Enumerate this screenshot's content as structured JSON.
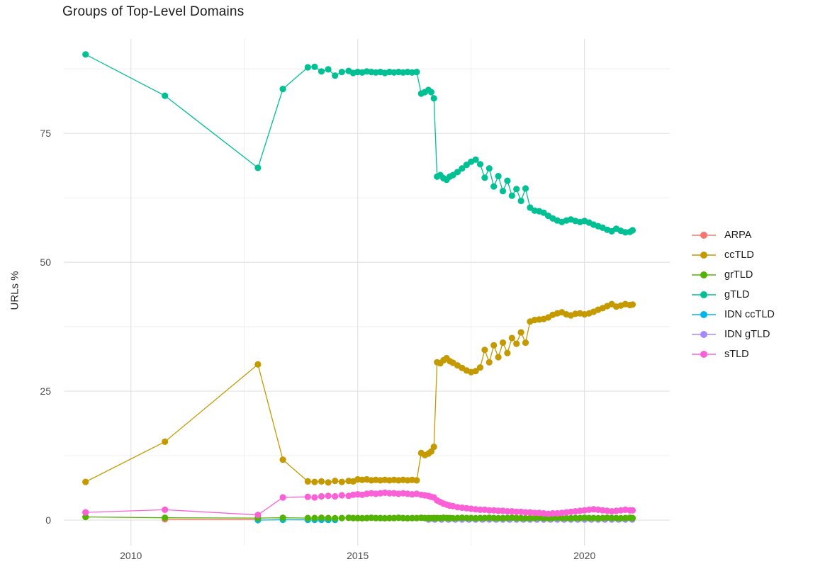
{
  "chart_data": {
    "type": "line",
    "title": "Groups of Top-Level Domains",
    "xlabel": "",
    "ylabel": "URLs %",
    "grid": true,
    "legend_position": "right",
    "x_ticks": [
      2010,
      2015,
      2020
    ],
    "x_tick_labels": [
      "2010",
      "2015",
      "2020"
    ],
    "y_ticks": [
      0,
      25,
      50,
      75
    ],
    "y_tick_labels": [
      "0",
      "25",
      "50",
      "75"
    ],
    "x_minor": [
      2012.5,
      2017.5
    ],
    "y_minor": [
      12.5,
      37.5,
      62.5,
      87.5
    ],
    "xlim": [
      2008.52,
      2021.88
    ],
    "ylim": [
      -4.95,
      93.3
    ],
    "legend": [
      {
        "label": "ARPA",
        "color": "#F8766D"
      },
      {
        "label": "ccTLD",
        "color": "#C49A00"
      },
      {
        "label": "grTLD",
        "color": "#53B400"
      },
      {
        "label": "gTLD",
        "color": "#00C094"
      },
      {
        "label": "IDN ccTLD",
        "color": "#00B6EB"
      },
      {
        "label": "IDN gTLD",
        "color": "#A58AFF"
      },
      {
        "label": "sTLD",
        "color": "#FB61D7"
      }
    ],
    "dense_x": [
      2013.35,
      2013.9,
      2014.05,
      2014.2,
      2014.35,
      2014.5,
      2014.65,
      2014.8,
      2014.9,
      2015.0,
      2015.1,
      2015.2,
      2015.3,
      2015.4,
      2015.5,
      2015.6,
      2015.7,
      2015.8,
      2015.9,
      2016.0,
      2016.1,
      2016.2,
      2016.3,
      2016.4,
      2016.48,
      2016.56,
      2016.62,
      2016.68,
      2016.75,
      2016.82,
      2016.89,
      2016.96,
      2017.03,
      2017.1,
      2017.2,
      2017.3,
      2017.4,
      2017.5,
      2017.6,
      2017.7,
      2017.8,
      2017.9,
      2018.0,
      2018.1,
      2018.2,
      2018.3,
      2018.4,
      2018.5,
      2018.6,
      2018.7,
      2018.8,
      2018.9,
      2019.0,
      2019.1,
      2019.2,
      2019.3,
      2019.4,
      2019.5,
      2019.6,
      2019.7,
      2019.8,
      2019.9,
      2020.0,
      2020.1,
      2020.2,
      2020.3,
      2020.4,
      2020.5,
      2020.6,
      2020.7,
      2020.8,
      2020.9,
      2021.0,
      2021.06
    ],
    "series": [
      {
        "name": "ARPA",
        "color": "#F8766D",
        "x": [
          2010.75,
          2012.8
        ],
        "y": [
          0.15,
          0.1
        ]
      },
      {
        "name": "ccTLD",
        "color": "#C49A00",
        "sparse_x": [
          2009.0,
          2010.75,
          2012.8
        ],
        "sparse_y": [
          7.4,
          15.2,
          30.2
        ],
        "dense_y": [
          11.7,
          7.5,
          7.4,
          7.5,
          7.3,
          7.6,
          7.4,
          7.6,
          7.5,
          7.9,
          7.8,
          7.9,
          7.7,
          7.8,
          7.7,
          7.8,
          7.7,
          7.8,
          7.7,
          7.8,
          7.7,
          7.8,
          7.7,
          13.0,
          12.6,
          12.9,
          13.3,
          14.2,
          30.6,
          30.4,
          31.0,
          31.4,
          30.8,
          30.5,
          30.0,
          29.5,
          29.0,
          28.7,
          28.9,
          29.6,
          33.0,
          30.6,
          33.9,
          31.6,
          34.4,
          32.4,
          35.3,
          34.2,
          36.4,
          34.4,
          38.5,
          38.8,
          38.9,
          39.0,
          39.3,
          39.8,
          40.1,
          40.3,
          39.9,
          39.7,
          40.0,
          40.1,
          39.9,
          40.1,
          40.4,
          40.8,
          41.1,
          41.5,
          41.9,
          41.4,
          41.6,
          41.9,
          41.7,
          41.8
        ]
      },
      {
        "name": "IDN ccTLD",
        "color": "#00B6EB",
        "x": [
          2012.8,
          2013.35,
          2013.9,
          2014.05,
          2014.2,
          2014.35,
          2014.5
        ],
        "y": [
          0.0,
          0.06,
          0.05,
          0.05,
          0.05,
          0.04,
          0.04
        ]
      },
      {
        "name": "IDN gTLD",
        "color": "#A58AFF",
        "x": [
          2016.56,
          2016.7,
          2016.85,
          2017.0,
          2017.15,
          2017.3,
          2017.45,
          2017.6,
          2017.75,
          2017.9,
          2018.05,
          2018.2,
          2018.35,
          2018.5,
          2018.65,
          2018.8,
          2018.95,
          2019.1,
          2019.25,
          2019.4,
          2019.55,
          2019.7,
          2019.85,
          2020.0,
          2020.15,
          2020.3,
          2020.45,
          2020.6,
          2020.75,
          2020.9,
          2021.05
        ],
        "y": [
          0.1,
          0.1,
          0.1,
          0.1,
          0.1,
          0.1,
          0.1,
          0.1,
          0.1,
          0.1,
          0.1,
          0.1,
          0.1,
          0.1,
          0.1,
          0.1,
          0.1,
          0.1,
          0.1,
          0.1,
          0.1,
          0.1,
          0.1,
          0.1,
          0.1,
          0.1,
          0.1,
          0.1,
          0.1,
          0.1,
          0.1
        ]
      },
      {
        "name": "grTLD",
        "color": "#53B400",
        "sparse_x": [
          2009.0,
          2010.75,
          2012.8
        ],
        "sparse_y": [
          0.6,
          0.45,
          0.4
        ],
        "dense_y": [
          0.45,
          0.4,
          0.4,
          0.45,
          0.4,
          0.35,
          0.4,
          0.45,
          0.4,
          0.4,
          0.35,
          0.4,
          0.45,
          0.4,
          0.4,
          0.35,
          0.4,
          0.4,
          0.45,
          0.4,
          0.35,
          0.4,
          0.4,
          0.45,
          0.4,
          0.4,
          0.35,
          0.4,
          0.4,
          0.35,
          0.45,
          0.4,
          0.4,
          0.35,
          0.4,
          0.45,
          0.4,
          0.4,
          0.35,
          0.4,
          0.4,
          0.45,
          0.4,
          0.35,
          0.4,
          0.4,
          0.45,
          0.4,
          0.4,
          0.35,
          0.4,
          0.4,
          0.45,
          0.4,
          0.35,
          0.4,
          0.45,
          0.4,
          0.4,
          0.35,
          0.4,
          0.4,
          0.45,
          0.4,
          0.4,
          0.35,
          0.4,
          0.45,
          0.4,
          0.4,
          0.35,
          0.4,
          0.45,
          0.4
        ]
      },
      {
        "name": "gTLD",
        "color": "#00C094",
        "sparse_x": [
          2009.0,
          2010.75,
          2012.8
        ],
        "sparse_y": [
          90.3,
          82.3,
          68.3
        ],
        "dense_y": [
          83.6,
          87.8,
          87.9,
          87.0,
          87.4,
          86.2,
          86.9,
          87.1,
          86.7,
          86.9,
          86.8,
          87.0,
          86.9,
          86.8,
          86.9,
          86.7,
          86.9,
          86.8,
          86.9,
          86.8,
          86.9,
          86.8,
          86.9,
          82.7,
          83.0,
          83.4,
          83.0,
          81.8,
          66.6,
          66.9,
          66.3,
          66.0,
          66.6,
          66.9,
          67.5,
          68.2,
          68.9,
          69.5,
          69.9,
          69.0,
          66.4,
          68.2,
          64.7,
          66.7,
          63.8,
          65.8,
          62.9,
          64.2,
          61.9,
          64.3,
          60.6,
          60.0,
          59.9,
          59.6,
          59.0,
          58.5,
          58.1,
          57.8,
          58.1,
          58.3,
          58.0,
          57.8,
          58.0,
          57.7,
          57.3,
          57.0,
          56.7,
          56.3,
          56.0,
          56.5,
          56.1,
          55.8,
          55.9,
          56.2
        ]
      },
      {
        "name": "sTLD",
        "color": "#FB61D7",
        "sparse_x": [
          2009.0,
          2010.75,
          2012.8
        ],
        "sparse_y": [
          1.5,
          2.0,
          1.0
        ],
        "dense_y": [
          4.4,
          4.5,
          4.4,
          4.6,
          4.7,
          4.6,
          4.8,
          4.7,
          4.9,
          5.0,
          4.9,
          5.1,
          5.2,
          5.1,
          5.2,
          5.3,
          5.2,
          5.2,
          5.1,
          5.2,
          5.1,
          5.0,
          5.1,
          4.9,
          4.8,
          4.7,
          4.5,
          4.4,
          3.8,
          3.5,
          3.2,
          3.0,
          2.8,
          2.7,
          2.5,
          2.4,
          2.3,
          2.2,
          2.1,
          2.0,
          2.0,
          1.9,
          1.9,
          1.8,
          1.8,
          1.7,
          1.7,
          1.6,
          1.6,
          1.5,
          1.5,
          1.4,
          1.4,
          1.3,
          1.2,
          1.3,
          1.3,
          1.4,
          1.5,
          1.6,
          1.7,
          1.8,
          1.9,
          2.0,
          2.1,
          2.0,
          1.9,
          1.8,
          1.7,
          1.8,
          1.9,
          2.0,
          1.9,
          1.9
        ]
      }
    ]
  }
}
